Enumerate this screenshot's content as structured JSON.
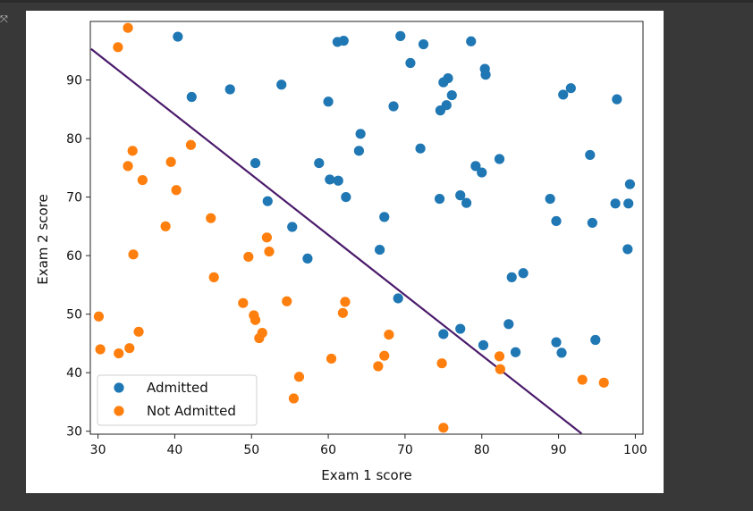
{
  "chart_data": {
    "type": "scatter",
    "xlabel": "Exam 1 score",
    "ylabel": "Exam 2 score",
    "xlim": [
      29.0,
      101.0
    ],
    "ylim": [
      29.5,
      100.0
    ],
    "xticks": [
      30,
      40,
      50,
      60,
      70,
      80,
      90,
      100
    ],
    "yticks": [
      30,
      40,
      50,
      60,
      70,
      80,
      90
    ],
    "grid": false,
    "legend_position": "lower-left",
    "series": [
      {
        "name": "Admitted",
        "color": "#1f77b4",
        "points": [
          [
            40.4,
            97.4
          ],
          [
            42.2,
            87.1
          ],
          [
            47.2,
            88.4
          ],
          [
            53.9,
            89.2
          ],
          [
            61.2,
            96.5
          ],
          [
            62.0,
            96.7
          ],
          [
            69.4,
            97.5
          ],
          [
            72.4,
            96.1
          ],
          [
            78.6,
            96.6
          ],
          [
            70.7,
            92.9
          ],
          [
            75.6,
            90.3
          ],
          [
            75.0,
            89.6
          ],
          [
            80.4,
            91.9
          ],
          [
            80.5,
            90.9
          ],
          [
            91.6,
            88.6
          ],
          [
            90.6,
            87.5
          ],
          [
            97.6,
            86.7
          ],
          [
            76.1,
            87.4
          ],
          [
            60.0,
            86.3
          ],
          [
            68.5,
            85.5
          ],
          [
            75.4,
            85.7
          ],
          [
            74.6,
            84.8
          ],
          [
            64.2,
            80.8
          ],
          [
            64.0,
            77.9
          ],
          [
            72.0,
            78.3
          ],
          [
            94.1,
            77.2
          ],
          [
            82.3,
            76.5
          ],
          [
            50.5,
            75.8
          ],
          [
            58.8,
            75.8
          ],
          [
            79.2,
            75.3
          ],
          [
            80.0,
            74.2
          ],
          [
            99.3,
            72.2
          ],
          [
            60.2,
            73.0
          ],
          [
            61.3,
            72.8
          ],
          [
            62.3,
            70.0
          ],
          [
            52.1,
            69.3
          ],
          [
            74.5,
            69.7
          ],
          [
            77.2,
            70.3
          ],
          [
            78.0,
            69.0
          ],
          [
            88.9,
            69.7
          ],
          [
            97.4,
            68.9
          ],
          [
            99.1,
            68.9
          ],
          [
            67.3,
            66.6
          ],
          [
            89.7,
            65.9
          ],
          [
            94.4,
            65.6
          ],
          [
            55.3,
            64.9
          ],
          [
            66.7,
            61.0
          ],
          [
            99.0,
            61.1
          ],
          [
            57.3,
            59.5
          ],
          [
            85.4,
            57.0
          ],
          [
            83.9,
            56.3
          ],
          [
            69.1,
            52.7
          ],
          [
            83.5,
            48.3
          ],
          [
            77.2,
            47.5
          ],
          [
            75.0,
            46.6
          ],
          [
            89.7,
            45.2
          ],
          [
            94.8,
            45.6
          ],
          [
            80.2,
            44.7
          ],
          [
            84.4,
            43.5
          ],
          [
            90.4,
            43.4
          ]
        ]
      },
      {
        "name": "Not Admitted",
        "color": "#ff7f0e",
        "points": [
          [
            33.9,
            98.9
          ],
          [
            32.6,
            95.6
          ],
          [
            42.1,
            78.9
          ],
          [
            34.5,
            77.9
          ],
          [
            33.9,
            75.3
          ],
          [
            39.5,
            76.0
          ],
          [
            35.8,
            72.9
          ],
          [
            40.2,
            71.2
          ],
          [
            44.7,
            66.4
          ],
          [
            38.8,
            65.0
          ],
          [
            52.0,
            63.1
          ],
          [
            52.3,
            60.7
          ],
          [
            34.6,
            60.2
          ],
          [
            49.6,
            59.8
          ],
          [
            45.1,
            56.3
          ],
          [
            48.9,
            51.9
          ],
          [
            54.6,
            52.2
          ],
          [
            62.2,
            52.1
          ],
          [
            50.3,
            49.8
          ],
          [
            61.9,
            50.2
          ],
          [
            50.5,
            49.0
          ],
          [
            30.1,
            49.6
          ],
          [
            35.3,
            47.0
          ],
          [
            51.4,
            46.8
          ],
          [
            67.9,
            46.5
          ],
          [
            51.0,
            45.9
          ],
          [
            30.3,
            44.0
          ],
          [
            34.1,
            44.2
          ],
          [
            32.7,
            43.3
          ],
          [
            60.4,
            42.4
          ],
          [
            67.3,
            42.9
          ],
          [
            82.3,
            42.8
          ],
          [
            66.5,
            41.1
          ],
          [
            74.8,
            41.6
          ],
          [
            82.4,
            40.6
          ],
          [
            56.2,
            39.3
          ],
          [
            93.1,
            38.8
          ],
          [
            95.9,
            38.3
          ],
          [
            55.5,
            35.6
          ],
          [
            75.0,
            30.6
          ]
        ]
      }
    ],
    "decision_boundary": {
      "name": "",
      "color": "#4a1a6b",
      "points": [
        [
          29.1,
          95.3
        ],
        [
          93.0,
          29.6
        ]
      ]
    }
  }
}
